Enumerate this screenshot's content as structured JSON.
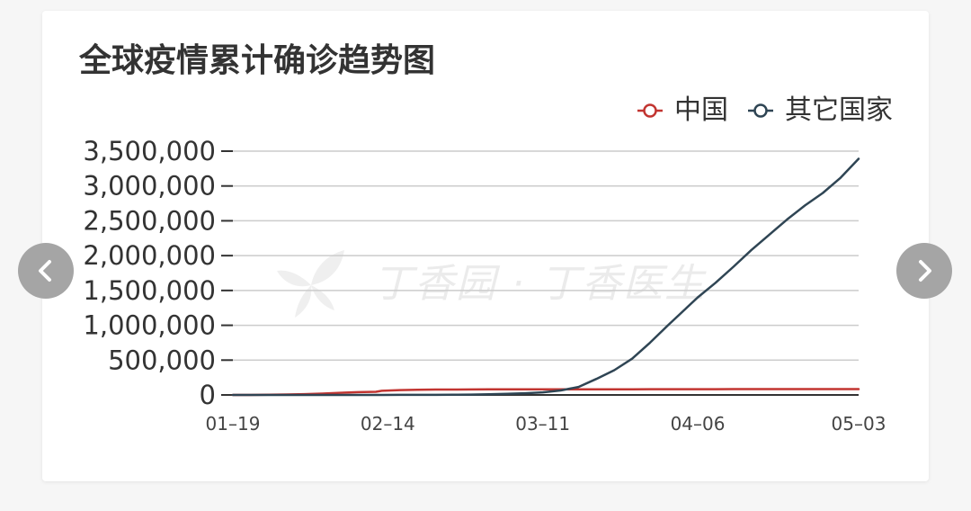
{
  "page": {
    "background": "#f6f6f6",
    "card_background": "#ffffff"
  },
  "carousel": {
    "prev_icon": "chevron-left-icon",
    "next_icon": "chevron-right-icon",
    "button_color": "#a5a5a5"
  },
  "watermark": {
    "logo_icon": "flower-logo-icon",
    "text": "丁香园 · 丁香医生"
  },
  "chart_data": {
    "type": "line",
    "title": "全球疫情累计确诊趋势图",
    "legend": "top-right",
    "grid": true,
    "ylim": [
      0,
      3500000
    ],
    "y_ticks": [
      0,
      500000,
      1000000,
      1500000,
      2000000,
      2500000,
      3000000,
      3500000
    ],
    "y_tick_labels": [
      "0",
      "500,000",
      "1,000,000",
      "1,500,000",
      "2,000,000",
      "2,500,000",
      "3,000,000",
      "3,500,000"
    ],
    "x_tick_labels": [
      "01–19",
      "02–14",
      "03–11",
      "04–06",
      "05–03"
    ],
    "x": [
      "01–19",
      "01–22",
      "01–25",
      "01–28",
      "01–31",
      "02–03",
      "02–06",
      "02–09",
      "02–12",
      "02–13",
      "02–16",
      "02–19",
      "02–22",
      "02–25",
      "02–28",
      "03–02",
      "03–05",
      "03–08",
      "03–11",
      "03–14",
      "03–17",
      "03–20",
      "03–23",
      "03–26",
      "03–29",
      "04–01",
      "04–04",
      "04–06",
      "04–09",
      "04–12",
      "04–15",
      "04–18",
      "04–21",
      "04–24",
      "04–27",
      "04–30",
      "05–03"
    ],
    "series": [
      {
        "name": "中国",
        "color": "#c23531",
        "values": [
          200,
          600,
          2000,
          6000,
          12000,
          20000,
          31000,
          40000,
          45000,
          60000,
          70000,
          75000,
          77000,
          78000,
          79000,
          80000,
          80500,
          80700,
          81000,
          81000,
          81100,
          81300,
          81600,
          81900,
          82400,
          82700,
          82900,
          83000,
          83200,
          83500,
          83700,
          84200,
          84300,
          84300,
          84300,
          84400,
          84400
        ]
      },
      {
        "name": "其它国家",
        "color": "#2f4554",
        "values": [
          10,
          30,
          60,
          80,
          140,
          190,
          250,
          330,
          450,
          480,
          700,
          1100,
          1600,
          2600,
          4700,
          8800,
          15000,
          25000,
          37000,
          65000,
          115000,
          230000,
          355000,
          520000,
          750000,
          1000000,
          1240000,
          1400000,
          1610000,
          1840000,
          2080000,
          2300000,
          2520000,
          2720000,
          2900000,
          3120000,
          3390000
        ]
      }
    ]
  }
}
